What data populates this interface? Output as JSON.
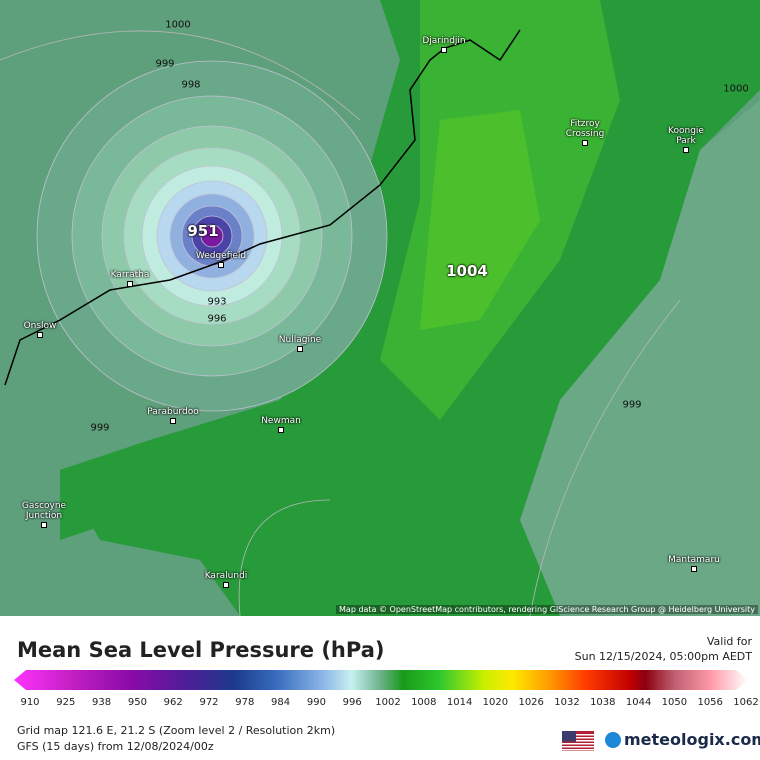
{
  "map": {
    "places": [
      "Djarindjin",
      "Fitzroy Crossing",
      "Koongie Park",
      "Karratha",
      "Wedgefield",
      "Onslow",
      "Nullagine",
      "Paraburdoo",
      "Newman",
      "Gascoyne Junction",
      "Karalundi",
      "Mantamaru"
    ],
    "isobar_labels": [
      "1000",
      "999",
      "998",
      "951",
      "993",
      "996",
      "1004",
      "1000",
      "999",
      "999"
    ],
    "attribution": "Map data © OpenStreetMap contributors, rendering GIScience Research Group @ Heidelberg University"
  },
  "legend": {
    "title": "Mean Sea Level Pressure (hPa)",
    "valid_label": "Valid for",
    "valid_time": "Sun 12/15/2024, 05:00pm AEDT",
    "scale_labels": [
      "910",
      "925",
      "938",
      "950",
      "962",
      "972",
      "978",
      "984",
      "990",
      "996",
      "1002",
      "1008",
      "1014",
      "1020",
      "1026",
      "1032",
      "1038",
      "1044",
      "1050",
      "1056",
      "1062"
    ]
  },
  "footer": {
    "lines": [
      "Grid map 121.6 E, 21.2 S (Zoom level 2 / Resolution 2km)",
      "GFS (15 days) from  12/08/2024/00z"
    ],
    "brand": "meteologix.com"
  }
}
